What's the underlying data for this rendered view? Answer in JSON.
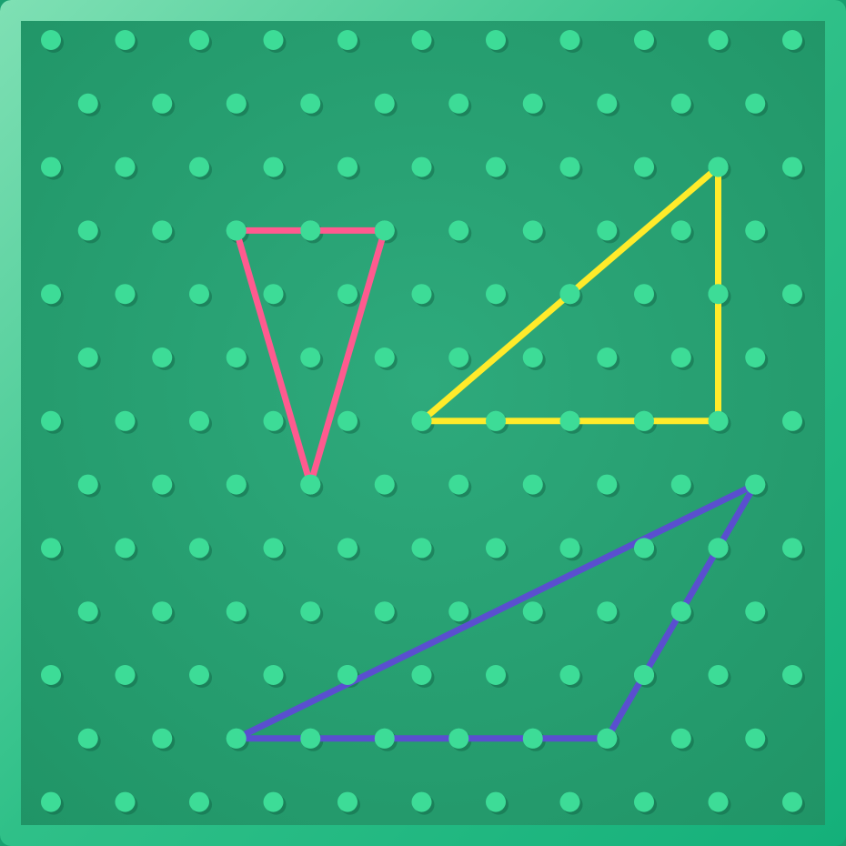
{
  "board": {
    "frame_colors": [
      "#7fe0b4",
      "#2fc088",
      "#14b07a"
    ],
    "surface_colors": [
      "#2eaa7c",
      "#209466"
    ],
    "peg_color": "#3ddc97",
    "peg_shadow_color": "#146b4a",
    "rows": 13,
    "odd_row_offset": true
  },
  "shapes": [
    {
      "name": "pink-triangle",
      "color": "#ff5a8f",
      "pegs": [
        [
          3,
          2
        ],
        [
          3,
          4
        ],
        [
          7,
          3
        ]
      ]
    },
    {
      "name": "yellow-triangle",
      "color": "#ffeb2a",
      "pegs": [
        [
          2,
          9
        ],
        [
          6,
          9
        ],
        [
          6,
          5
        ]
      ]
    },
    {
      "name": "purple-triangle",
      "color": "#5a4fcf",
      "pegs": [
        [
          7,
          9
        ],
        [
          11,
          2
        ],
        [
          11,
          7
        ]
      ]
    }
  ]
}
